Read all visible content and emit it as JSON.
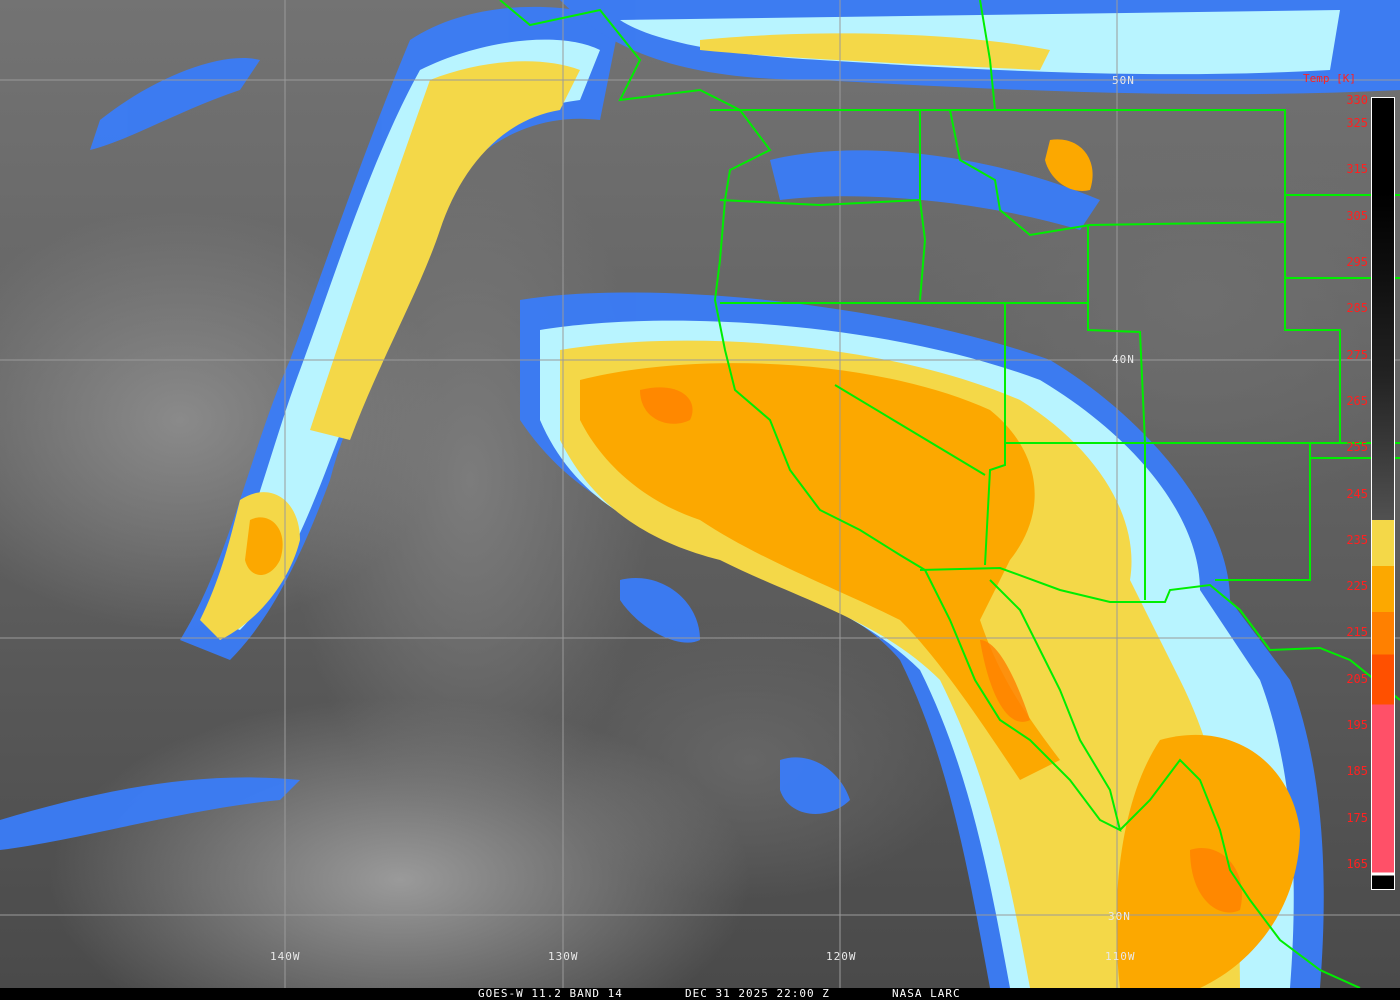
{
  "caption": {
    "sensor": "GOES-W 11.2 BAND 14",
    "datetime": "DEC 31 2025 22:00 Z",
    "credit": "NASA LARC"
  },
  "grid_labels": {
    "lon_140w": "140W",
    "lon_130w": "130W",
    "lon_120w": "120W",
    "lon_110w": "110W",
    "lat_50n": "50N",
    "lat_40n": "40N",
    "lat_30n": "30N"
  },
  "legend": {
    "title": "Temp [K]",
    "ticks": [
      "330",
      "325",
      "315",
      "305",
      "295",
      "285",
      "275",
      "265",
      "255",
      "245",
      "235",
      "225",
      "215",
      "205",
      "195",
      "185",
      "175",
      "165"
    ],
    "colors": {
      "cold_top": "#ff5068",
      "orange": "#fca800",
      "yellow": "#f4d848",
      "light_blue": "#b8f4ff",
      "blue": "#3a7cf8",
      "border_lines": "#00ff00"
    }
  }
}
